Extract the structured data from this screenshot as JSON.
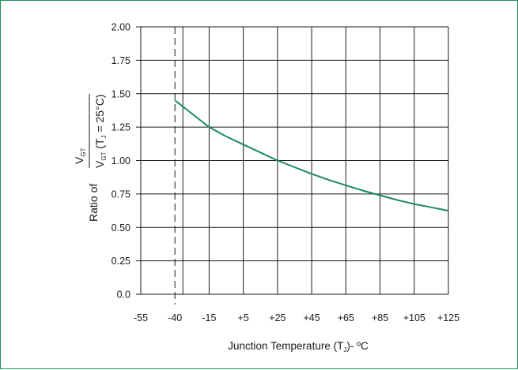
{
  "chart_data": {
    "type": "line",
    "xlabel": {
      "prefix": "Junction Temperature (T",
      "sub": "J",
      "suffix": ")- ºC"
    },
    "ylabel": {
      "prefix": "Ratio of",
      "numerator": {
        "main": "V",
        "sub": "GT"
      },
      "denominator": {
        "main": "V",
        "sub": "GT",
        "cond_open": " (T",
        "cond_sub": "J",
        "cond_close": " = 25°C)"
      }
    },
    "x_ticks": [
      "-55",
      "-40",
      "-15",
      "+5",
      "+25",
      "+45",
      "+65",
      "+85",
      "+105",
      "+125"
    ],
    "x_tick_values": [
      -55,
      -40,
      -15,
      5,
      25,
      45,
      65,
      85,
      105,
      125
    ],
    "y_ticks": [
      "0.0",
      "0.25",
      "0.50",
      "0.75",
      "1.00",
      "1.25",
      "1.50",
      "1.75",
      "2.00"
    ],
    "y_tick_values": [
      0,
      0.25,
      0.5,
      0.75,
      1.0,
      1.25,
      1.5,
      1.75,
      2.0
    ],
    "ylim": [
      0,
      2.0
    ],
    "grid": true,
    "reference_line_x": -40,
    "series": [
      {
        "color": "#1a8a5e",
        "x": [
          -40,
          -25,
          -15,
          -5,
          5,
          15,
          25,
          35,
          45,
          55,
          65,
          75,
          85,
          95,
          105,
          115,
          125
        ],
        "y": [
          1.45,
          1.33,
          1.25,
          1.18,
          1.12,
          1.06,
          1.0,
          0.95,
          0.9,
          0.855,
          0.815,
          0.775,
          0.74,
          0.705,
          0.675,
          0.65,
          0.625
        ]
      }
    ]
  },
  "colors": {
    "frame": "#1d8f5a",
    "grid": "#1a1a1a",
    "series": "#1a8a5e"
  }
}
